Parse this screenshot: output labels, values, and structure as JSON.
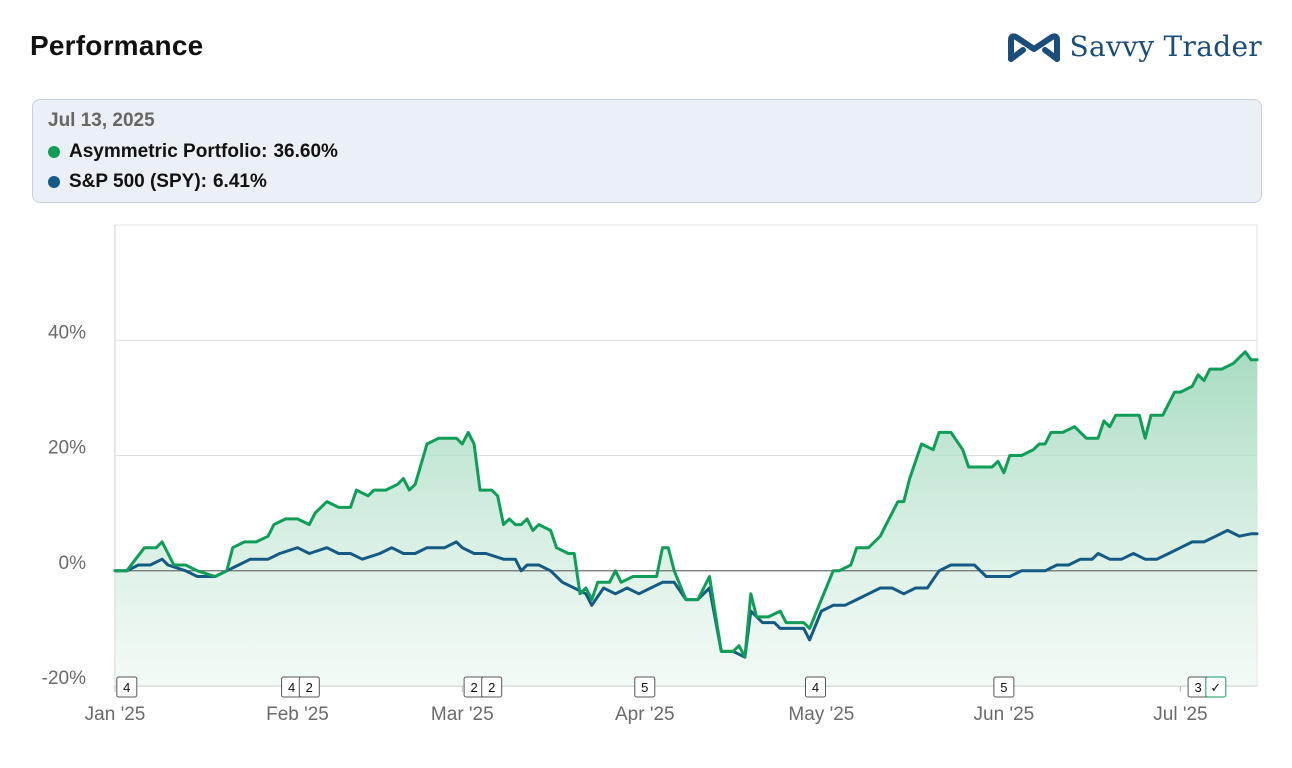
{
  "header": {
    "title": "Performance",
    "brand_name": "Savvy Trader"
  },
  "colors": {
    "portfolio": "#0f9d58",
    "benchmark": "#155a84",
    "brand": "#1b4d7a"
  },
  "tooltip": {
    "date": "Jul 13, 2025",
    "rows": [
      {
        "label": "Asymmetric Portfolio",
        "value": "36.60%",
        "icon": "green-dot-icon"
      },
      {
        "label": "S&P 500 (SPY)",
        "value": "6.41%",
        "icon": "blue-dot-icon"
      }
    ]
  },
  "chart_data": {
    "type": "area",
    "title": "Performance",
    "xlabel": "",
    "ylabel": "",
    "ylim": [
      -20,
      60
    ],
    "x_domain": [
      "2025-01-01",
      "2025-07-14"
    ],
    "y_ticks": [
      {
        "value": 40,
        "label": "40%"
      },
      {
        "value": 20,
        "label": "20%"
      },
      {
        "value": 0,
        "label": "0%"
      },
      {
        "value": -20,
        "label": "-20%"
      }
    ],
    "x_ticks": [
      {
        "date": "2025-01-01",
        "label": "Jan '25"
      },
      {
        "date": "2025-02-01",
        "label": "Feb '25"
      },
      {
        "date": "2025-03-01",
        "label": "Mar '25"
      },
      {
        "date": "2025-04-01",
        "label": "Apr '25"
      },
      {
        "date": "2025-05-01",
        "label": "May '25"
      },
      {
        "date": "2025-06-01",
        "label": "Jun '25"
      },
      {
        "date": "2025-07-01",
        "label": "Jul '25"
      }
    ],
    "trade_markers": [
      {
        "date": "2025-01-03",
        "label": "4"
      },
      {
        "date": "2025-01-31",
        "label": "4"
      },
      {
        "date": "2025-02-03",
        "label": "2"
      },
      {
        "date": "2025-03-03",
        "label": "2"
      },
      {
        "date": "2025-03-06",
        "label": "2"
      },
      {
        "date": "2025-04-01",
        "label": "5"
      },
      {
        "date": "2025-04-30",
        "label": "4"
      },
      {
        "date": "2025-06-01",
        "label": "5"
      },
      {
        "date": "2025-07-04",
        "label": "3"
      },
      {
        "date": "2025-07-07",
        "label": "✓",
        "highlight": true
      }
    ],
    "series": [
      {
        "name": "Asymmetric Portfolio",
        "color": "#0f9d58",
        "fill": true,
        "points": [
          [
            "2025-01-01",
            0
          ],
          [
            "2025-01-03",
            0
          ],
          [
            "2025-01-06",
            4
          ],
          [
            "2025-01-08",
            4
          ],
          [
            "2025-01-09",
            5
          ],
          [
            "2025-01-10",
            3
          ],
          [
            "2025-01-11",
            1
          ],
          [
            "2025-01-13",
            1
          ],
          [
            "2025-01-15",
            0
          ],
          [
            "2025-01-18",
            -1
          ],
          [
            "2025-01-20",
            0
          ],
          [
            "2025-01-21",
            4
          ],
          [
            "2025-01-23",
            5
          ],
          [
            "2025-01-25",
            5
          ],
          [
            "2025-01-27",
            6
          ],
          [
            "2025-01-28",
            8
          ],
          [
            "2025-01-30",
            9
          ],
          [
            "2025-02-01",
            9
          ],
          [
            "2025-02-03",
            8
          ],
          [
            "2025-02-04",
            10
          ],
          [
            "2025-02-06",
            12
          ],
          [
            "2025-02-08",
            11
          ],
          [
            "2025-02-10",
            11
          ],
          [
            "2025-02-11",
            14
          ],
          [
            "2025-02-13",
            13
          ],
          [
            "2025-02-14",
            14
          ],
          [
            "2025-02-16",
            14
          ],
          [
            "2025-02-18",
            15
          ],
          [
            "2025-02-19",
            16
          ],
          [
            "2025-02-20",
            14
          ],
          [
            "2025-02-21",
            15
          ],
          [
            "2025-02-23",
            22
          ],
          [
            "2025-02-25",
            23
          ],
          [
            "2025-02-28",
            23
          ],
          [
            "2025-03-01",
            22
          ],
          [
            "2025-03-02",
            24
          ],
          [
            "2025-03-03",
            22
          ],
          [
            "2025-03-04",
            14
          ],
          [
            "2025-03-06",
            14
          ],
          [
            "2025-03-07",
            13
          ],
          [
            "2025-03-08",
            8
          ],
          [
            "2025-03-09",
            9
          ],
          [
            "2025-03-10",
            8
          ],
          [
            "2025-03-11",
            8
          ],
          [
            "2025-03-12",
            9
          ],
          [
            "2025-03-13",
            7
          ],
          [
            "2025-03-14",
            8
          ],
          [
            "2025-03-16",
            7
          ],
          [
            "2025-03-17",
            4
          ],
          [
            "2025-03-19",
            3
          ],
          [
            "2025-03-20",
            3
          ],
          [
            "2025-03-21",
            -4
          ],
          [
            "2025-03-22",
            -3
          ],
          [
            "2025-03-23",
            -5
          ],
          [
            "2025-03-24",
            -2
          ],
          [
            "2025-03-26",
            -2
          ],
          [
            "2025-03-27",
            0
          ],
          [
            "2025-03-28",
            -2
          ],
          [
            "2025-03-30",
            -1
          ],
          [
            "2025-04-01",
            -1
          ],
          [
            "2025-04-03",
            -1
          ],
          [
            "2025-04-04",
            4
          ],
          [
            "2025-04-05",
            4
          ],
          [
            "2025-04-06",
            0
          ],
          [
            "2025-04-08",
            -5
          ],
          [
            "2025-04-09",
            -5
          ],
          [
            "2025-04-10",
            -5
          ],
          [
            "2025-04-11",
            -3
          ],
          [
            "2025-04-12",
            -1
          ],
          [
            "2025-04-14",
            -14
          ],
          [
            "2025-04-16",
            -14
          ],
          [
            "2025-04-17",
            -13
          ],
          [
            "2025-04-18",
            -15
          ],
          [
            "2025-04-19",
            -4
          ],
          [
            "2025-04-20",
            -8
          ],
          [
            "2025-04-22",
            -8
          ],
          [
            "2025-04-24",
            -7
          ],
          [
            "2025-04-25",
            -9
          ],
          [
            "2025-04-28",
            -9
          ],
          [
            "2025-04-29",
            -10
          ],
          [
            "2025-05-01",
            -5
          ],
          [
            "2025-05-03",
            0
          ],
          [
            "2025-05-04",
            0
          ],
          [
            "2025-05-06",
            1
          ],
          [
            "2025-05-07",
            4
          ],
          [
            "2025-05-09",
            4
          ],
          [
            "2025-05-11",
            6
          ],
          [
            "2025-05-12",
            8
          ],
          [
            "2025-05-14",
            12
          ],
          [
            "2025-05-15",
            12
          ],
          [
            "2025-05-16",
            16
          ],
          [
            "2025-05-18",
            22
          ],
          [
            "2025-05-20",
            21
          ],
          [
            "2025-05-21",
            24
          ],
          [
            "2025-05-23",
            24
          ],
          [
            "2025-05-25",
            21
          ],
          [
            "2025-05-26",
            18
          ],
          [
            "2025-05-30",
            18
          ],
          [
            "2025-05-31",
            19
          ],
          [
            "2025-06-01",
            17
          ],
          [
            "2025-06-02",
            20
          ],
          [
            "2025-06-04",
            20
          ],
          [
            "2025-06-06",
            21
          ],
          [
            "2025-06-07",
            22
          ],
          [
            "2025-06-08",
            22
          ],
          [
            "2025-06-09",
            24
          ],
          [
            "2025-06-11",
            24
          ],
          [
            "2025-06-13",
            25
          ],
          [
            "2025-06-15",
            23
          ],
          [
            "2025-06-17",
            23
          ],
          [
            "2025-06-18",
            26
          ],
          [
            "2025-06-19",
            25
          ],
          [
            "2025-06-20",
            27
          ],
          [
            "2025-06-22",
            27
          ],
          [
            "2025-06-24",
            27
          ],
          [
            "2025-06-25",
            23
          ],
          [
            "2025-06-26",
            27
          ],
          [
            "2025-06-28",
            27
          ],
          [
            "2025-06-30",
            31
          ],
          [
            "2025-07-01",
            31
          ],
          [
            "2025-07-03",
            32
          ],
          [
            "2025-07-04",
            34
          ],
          [
            "2025-07-05",
            33
          ],
          [
            "2025-07-06",
            35
          ],
          [
            "2025-07-08",
            35
          ],
          [
            "2025-07-10",
            36
          ],
          [
            "2025-07-11",
            37
          ],
          [
            "2025-07-12",
            38
          ],
          [
            "2025-07-13",
            36.6
          ],
          [
            "2025-07-14",
            36.6
          ]
        ]
      },
      {
        "name": "S&P 500 (SPY)",
        "color": "#155a84",
        "fill": false,
        "points": [
          [
            "2025-01-01",
            0
          ],
          [
            "2025-01-03",
            0
          ],
          [
            "2025-01-05",
            1
          ],
          [
            "2025-01-07",
            1
          ],
          [
            "2025-01-09",
            2
          ],
          [
            "2025-01-10",
            1
          ],
          [
            "2025-01-13",
            0
          ],
          [
            "2025-01-15",
            -1
          ],
          [
            "2025-01-18",
            -1
          ],
          [
            "2025-01-20",
            0
          ],
          [
            "2025-01-22",
            1
          ],
          [
            "2025-01-24",
            2
          ],
          [
            "2025-01-27",
            2
          ],
          [
            "2025-01-29",
            3
          ],
          [
            "2025-02-01",
            4
          ],
          [
            "2025-02-03",
            3
          ],
          [
            "2025-02-06",
            4
          ],
          [
            "2025-02-08",
            3
          ],
          [
            "2025-02-10",
            3
          ],
          [
            "2025-02-12",
            2
          ],
          [
            "2025-02-15",
            3
          ],
          [
            "2025-02-17",
            4
          ],
          [
            "2025-02-19",
            3
          ],
          [
            "2025-02-21",
            3
          ],
          [
            "2025-02-23",
            4
          ],
          [
            "2025-02-26",
            4
          ],
          [
            "2025-02-28",
            5
          ],
          [
            "2025-03-01",
            4
          ],
          [
            "2025-03-03",
            3
          ],
          [
            "2025-03-05",
            3
          ],
          [
            "2025-03-08",
            2
          ],
          [
            "2025-03-10",
            2
          ],
          [
            "2025-03-11",
            0
          ],
          [
            "2025-03-12",
            1
          ],
          [
            "2025-03-14",
            1
          ],
          [
            "2025-03-16",
            0
          ],
          [
            "2025-03-18",
            -2
          ],
          [
            "2025-03-20",
            -3
          ],
          [
            "2025-03-22",
            -4
          ],
          [
            "2025-03-23",
            -6
          ],
          [
            "2025-03-25",
            -3
          ],
          [
            "2025-03-27",
            -4
          ],
          [
            "2025-03-29",
            -3
          ],
          [
            "2025-03-31",
            -4
          ],
          [
            "2025-04-02",
            -3
          ],
          [
            "2025-04-04",
            -2
          ],
          [
            "2025-04-06",
            -2
          ],
          [
            "2025-04-08",
            -5
          ],
          [
            "2025-04-10",
            -5
          ],
          [
            "2025-04-12",
            -3
          ],
          [
            "2025-04-14",
            -14
          ],
          [
            "2025-04-16",
            -14
          ],
          [
            "2025-04-18",
            -15
          ],
          [
            "2025-04-19",
            -7
          ],
          [
            "2025-04-21",
            -9
          ],
          [
            "2025-04-23",
            -9
          ],
          [
            "2025-04-24",
            -10
          ],
          [
            "2025-04-26",
            -10
          ],
          [
            "2025-04-28",
            -10
          ],
          [
            "2025-04-29",
            -12
          ],
          [
            "2025-05-01",
            -7
          ],
          [
            "2025-05-03",
            -6
          ],
          [
            "2025-05-05",
            -6
          ],
          [
            "2025-05-07",
            -5
          ],
          [
            "2025-05-09",
            -4
          ],
          [
            "2025-05-11",
            -3
          ],
          [
            "2025-05-13",
            -3
          ],
          [
            "2025-05-15",
            -4
          ],
          [
            "2025-05-17",
            -3
          ],
          [
            "2025-05-19",
            -3
          ],
          [
            "2025-05-21",
            0
          ],
          [
            "2025-05-23",
            1
          ],
          [
            "2025-05-25",
            1
          ],
          [
            "2025-05-27",
            1
          ],
          [
            "2025-05-29",
            -1
          ],
          [
            "2025-05-31",
            -1
          ],
          [
            "2025-06-02",
            -1
          ],
          [
            "2025-06-04",
            0
          ],
          [
            "2025-06-06",
            0
          ],
          [
            "2025-06-08",
            0
          ],
          [
            "2025-06-10",
            1
          ],
          [
            "2025-06-12",
            1
          ],
          [
            "2025-06-14",
            2
          ],
          [
            "2025-06-16",
            2
          ],
          [
            "2025-06-17",
            3
          ],
          [
            "2025-06-19",
            2
          ],
          [
            "2025-06-21",
            2
          ],
          [
            "2025-06-23",
            3
          ],
          [
            "2025-06-25",
            2
          ],
          [
            "2025-06-27",
            2
          ],
          [
            "2025-06-29",
            3
          ],
          [
            "2025-07-01",
            4
          ],
          [
            "2025-07-03",
            5
          ],
          [
            "2025-07-05",
            5
          ],
          [
            "2025-07-07",
            6
          ],
          [
            "2025-07-09",
            7
          ],
          [
            "2025-07-11",
            6
          ],
          [
            "2025-07-13",
            6.41
          ],
          [
            "2025-07-14",
            6.41
          ]
        ]
      }
    ]
  }
}
